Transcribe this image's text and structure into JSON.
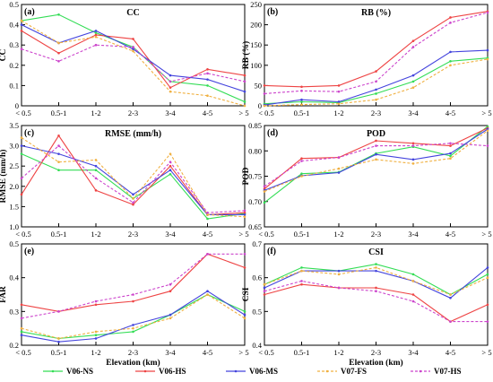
{
  "chart_data": [
    {
      "type": "line",
      "id": "a",
      "panel_label": "(a)",
      "title": "CC",
      "ylabel": "CC",
      "xlabel": "",
      "categories": [
        "< 0.5",
        "0.5-1",
        "1-2",
        "2-3",
        "3-4",
        "4-5",
        "> 5"
      ],
      "ylim": [
        0,
        0.5
      ],
      "yticks": [
        "0",
        "0.1",
        "0.2",
        "0.3",
        "0.4",
        "0.5"
      ],
      "yticks_v": [
        0,
        0.1,
        0.2,
        0.3,
        0.4,
        0.5
      ],
      "series": [
        {
          "name": "V06-NS",
          "values": [
            0.42,
            0.45,
            0.36,
            0.29,
            0.12,
            0.1,
            0.02
          ]
        },
        {
          "name": "V06-HS",
          "values": [
            0.37,
            0.26,
            0.35,
            0.33,
            0.09,
            0.18,
            0.15
          ]
        },
        {
          "name": "V06-MS",
          "values": [
            0.4,
            0.31,
            0.37,
            0.28,
            0.15,
            0.13,
            0.07
          ]
        },
        {
          "name": "V07-FS",
          "values": [
            0.42,
            0.31,
            0.34,
            0.27,
            0.07,
            0.05,
            0.0
          ]
        },
        {
          "name": "V07-HS",
          "values": [
            0.28,
            0.22,
            0.3,
            0.29,
            0.12,
            0.16,
            0.12
          ]
        }
      ]
    },
    {
      "type": "line",
      "id": "b",
      "panel_label": "(b)",
      "title": "RB (%)",
      "ylabel": "RB (%)",
      "xlabel": "",
      "categories": [
        "< 0.5",
        "0.5-1",
        "1-2",
        "2-3",
        "3-4",
        "4-5",
        "> 5"
      ],
      "ylim": [
        0,
        250
      ],
      "yticks": [
        "0",
        "50",
        "100",
        "150",
        "200",
        "250"
      ],
      "yticks_v": [
        0,
        50,
        100,
        150,
        200,
        250
      ],
      "series": [
        {
          "name": "V06-NS",
          "values": [
            5,
            10,
            8,
            30,
            60,
            110,
            118
          ]
        },
        {
          "name": "V06-HS",
          "values": [
            50,
            47,
            50,
            85,
            160,
            218,
            233
          ]
        },
        {
          "name": "V06-MS",
          "values": [
            2,
            15,
            10,
            40,
            75,
            133,
            137
          ]
        },
        {
          "name": "V07-FS",
          "values": [
            0,
            3,
            5,
            15,
            45,
            100,
            115
          ]
        },
        {
          "name": "V07-HS",
          "values": [
            30,
            37,
            35,
            60,
            145,
            205,
            230
          ]
        }
      ]
    },
    {
      "type": "line",
      "id": "c",
      "panel_label": "(c)",
      "title": "RMSE (mm/h)",
      "ylabel": "RMSE (mm/h)",
      "xlabel": "",
      "categories": [
        "< 0.5",
        "0.5-1",
        "1-2",
        "2-3",
        "3-4",
        "4-5",
        "> 5"
      ],
      "ylim": [
        1.0,
        3.5
      ],
      "yticks": [
        "1.0",
        "1.5",
        "2.0",
        "2.5",
        "3.0",
        "3.5"
      ],
      "yticks_v": [
        1.0,
        1.5,
        2.0,
        2.5,
        3.0,
        3.5
      ],
      "series": [
        {
          "name": "V06-NS",
          "values": [
            2.8,
            2.4,
            2.4,
            1.7,
            2.3,
            1.2,
            1.33
          ]
        },
        {
          "name": "V06-HS",
          "values": [
            1.8,
            3.25,
            1.9,
            1.55,
            2.5,
            1.3,
            1.35
          ]
        },
        {
          "name": "V06-MS",
          "values": [
            3.0,
            2.8,
            2.5,
            1.8,
            2.4,
            1.3,
            1.3
          ]
        },
        {
          "name": "V07-FS",
          "values": [
            3.2,
            2.6,
            2.65,
            1.7,
            2.8,
            1.3,
            1.25
          ]
        },
        {
          "name": "V07-HS",
          "values": [
            2.2,
            3.0,
            2.2,
            1.6,
            2.6,
            1.35,
            1.4
          ]
        }
      ]
    },
    {
      "type": "line",
      "id": "d",
      "panel_label": "(d)",
      "title": "POD",
      "ylabel": "POD",
      "xlabel": "",
      "categories": [
        "< 0.5",
        "0.5-1",
        "1-2",
        "2-3",
        "3-4",
        "4-5",
        "> 5"
      ],
      "ylim": [
        0.65,
        0.85
      ],
      "yticks": [
        "0.65",
        "0.70",
        "0.75",
        "0.80",
        "0.85"
      ],
      "yticks_v": [
        0.65,
        0.7,
        0.75,
        0.8,
        0.85
      ],
      "series": [
        {
          "name": "V06-NS",
          "values": [
            0.698,
            0.755,
            0.758,
            0.795,
            0.808,
            0.79,
            0.848
          ]
        },
        {
          "name": "V06-HS",
          "values": [
            0.725,
            0.785,
            0.787,
            0.82,
            0.815,
            0.81,
            0.845
          ]
        },
        {
          "name": "V06-MS",
          "values": [
            0.722,
            0.751,
            0.757,
            0.793,
            0.783,
            0.795,
            0.843
          ]
        },
        {
          "name": "V07-FS",
          "values": [
            0.72,
            0.75,
            0.765,
            0.783,
            0.775,
            0.785,
            0.84
          ]
        },
        {
          "name": "V07-HS",
          "values": [
            0.73,
            0.78,
            0.787,
            0.81,
            0.81,
            0.815,
            0.81
          ]
        }
      ]
    },
    {
      "type": "line",
      "id": "e",
      "panel_label": "(e)",
      "title": "",
      "ylabel": "FAR",
      "xlabel": "Elevation (km)",
      "categories": [
        "< 0.5",
        "0.5-1",
        "1-2",
        "2-3",
        "3-4",
        "4-5",
        "> 5"
      ],
      "ylim": [
        0.2,
        0.5
      ],
      "yticks": [
        "0.2",
        "0.3",
        "0.4",
        "0.5"
      ],
      "yticks_v": [
        0.2,
        0.3,
        0.4,
        0.5
      ],
      "series": [
        {
          "name": "V06-NS",
          "values": [
            0.24,
            0.22,
            0.23,
            0.24,
            0.29,
            0.35,
            0.3
          ]
        },
        {
          "name": "V06-HS",
          "values": [
            0.32,
            0.3,
            0.32,
            0.33,
            0.36,
            0.47,
            0.43
          ]
        },
        {
          "name": "V06-MS",
          "values": [
            0.23,
            0.21,
            0.22,
            0.26,
            0.29,
            0.36,
            0.29
          ]
        },
        {
          "name": "V07-FS",
          "values": [
            0.25,
            0.22,
            0.24,
            0.25,
            0.28,
            0.35,
            0.28
          ]
        },
        {
          "name": "V07-HS",
          "values": [
            0.28,
            0.3,
            0.33,
            0.35,
            0.38,
            0.47,
            0.47
          ]
        }
      ]
    },
    {
      "type": "line",
      "id": "f",
      "panel_label": "(f)",
      "title": "CSI",
      "ylabel": "CSI",
      "xlabel": "Elevation (km)",
      "categories": [
        "< 0.5",
        "0.5-1",
        "1-2",
        "2-3",
        "3-4",
        "4-5",
        "> 5"
      ],
      "ylim": [
        0.4,
        0.7
      ],
      "yticks": [
        "0.4",
        "0.5",
        "0.6",
        "0.7"
      ],
      "yticks_v": [
        0.4,
        0.5,
        0.6,
        0.7
      ],
      "series": [
        {
          "name": "V06-NS",
          "values": [
            0.58,
            0.63,
            0.62,
            0.64,
            0.61,
            0.55,
            0.61
          ]
        },
        {
          "name": "V06-HS",
          "values": [
            0.55,
            0.58,
            0.57,
            0.57,
            0.55,
            0.47,
            0.52
          ]
        },
        {
          "name": "V06-MS",
          "values": [
            0.57,
            0.62,
            0.62,
            0.62,
            0.59,
            0.54,
            0.63
          ]
        },
        {
          "name": "V07-FS",
          "values": [
            0.58,
            0.62,
            0.61,
            0.63,
            0.59,
            0.55,
            0.6
          ]
        },
        {
          "name": "V07-HS",
          "values": [
            0.56,
            0.59,
            0.57,
            0.56,
            0.53,
            0.47,
            0.47
          ]
        }
      ]
    }
  ],
  "legend": [
    {
      "name": "V06-NS",
      "color": "#33dd55",
      "dash": ""
    },
    {
      "name": "V06-HS",
      "color": "#ee4444",
      "dash": ""
    },
    {
      "name": "V06-MS",
      "color": "#4444dd",
      "dash": ""
    },
    {
      "name": "V07-FS",
      "color": "#f0b040",
      "dash": "3,2"
    },
    {
      "name": "V07-HS",
      "color": "#cc44cc",
      "dash": "3,2"
    }
  ]
}
